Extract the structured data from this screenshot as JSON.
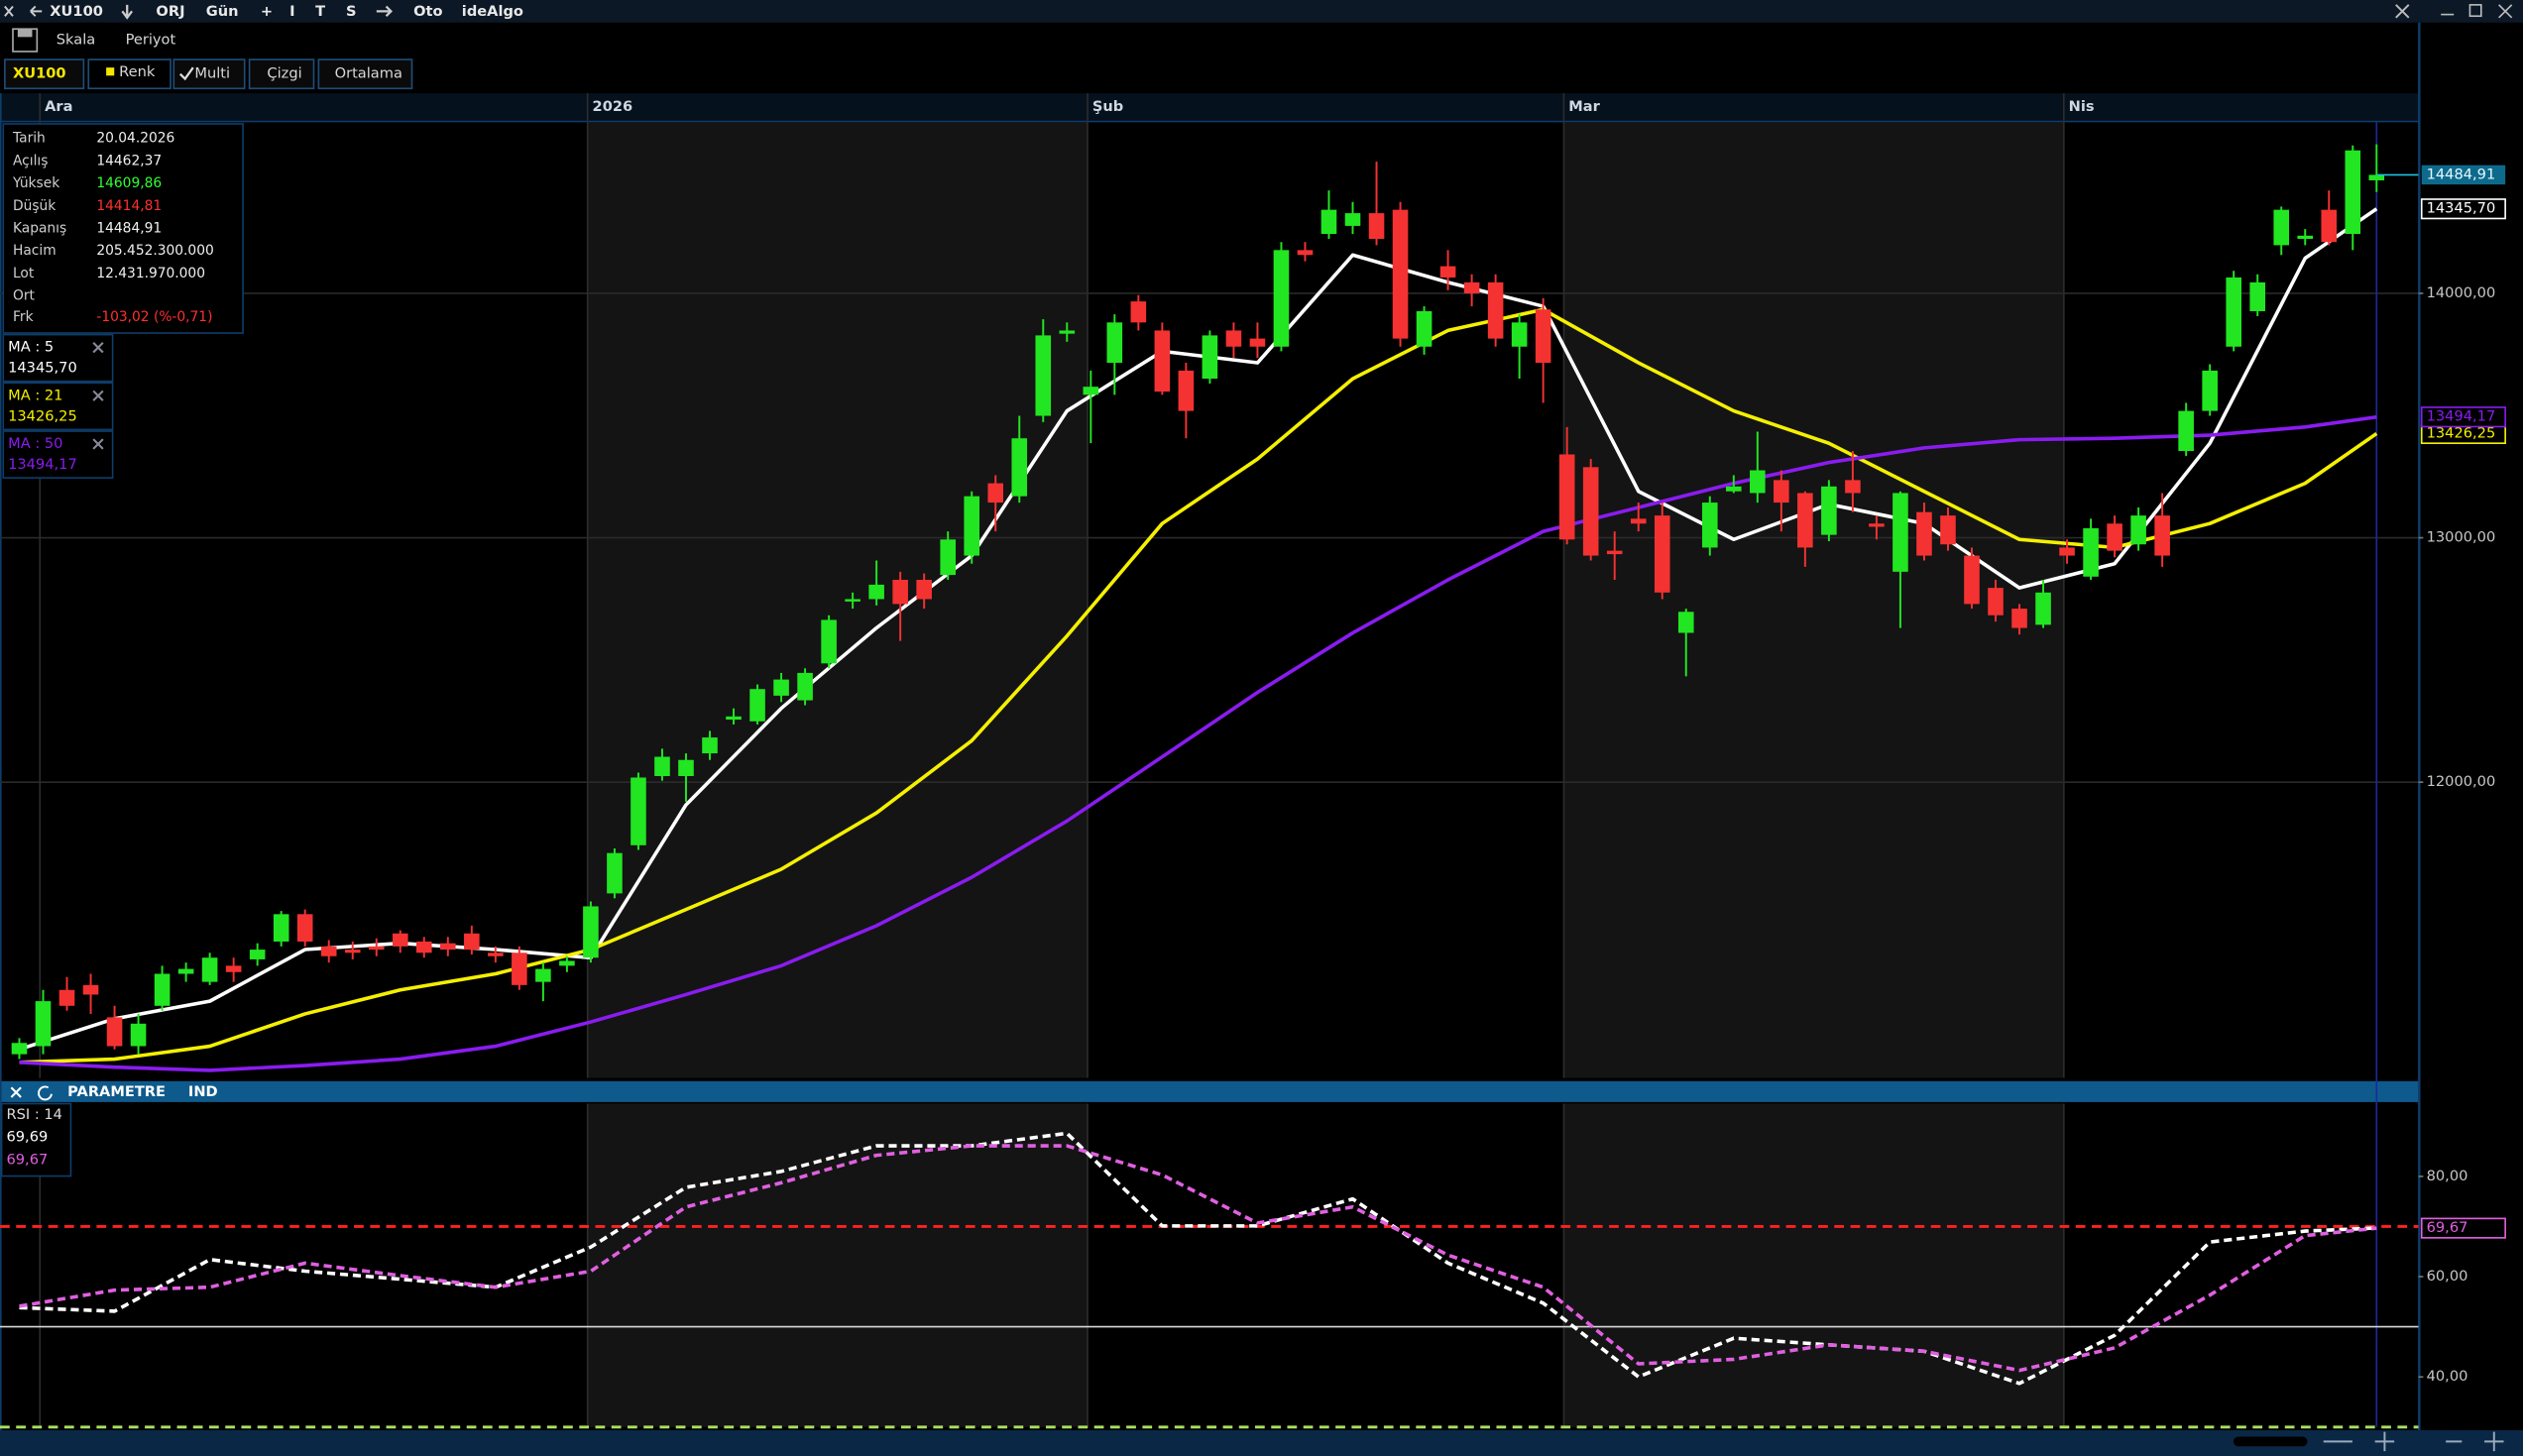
{
  "ui": {
    "toolbar": [
      "XU100",
      "ORJ",
      "Gün",
      "+",
      "I",
      "T",
      "S",
      "Oto",
      "ideAlgo"
    ],
    "menu": [
      "Skala",
      "Periyot"
    ],
    "tabs": [
      "XU100",
      "Renk",
      "Multi",
      "Çizgi",
      "Ortalama"
    ],
    "info": [
      {
        "label": "Tarih",
        "value": "20.04.2026"
      },
      {
        "label": "Açılış",
        "value": "14462,37"
      },
      {
        "label": "Yüksek",
        "value": "14609,86"
      },
      {
        "label": "Düşük",
        "value": "14414,81"
      },
      {
        "label": "Kapanış",
        "value": "14484,91"
      },
      {
        "label": "Hacim",
        "value": "205.452.300.000"
      },
      {
        "label": "Lot",
        "value": "12.431.970.000"
      },
      {
        "label": "Ort"
      },
      {
        "label": "Frk",
        "value": "-103,02 (%-0,71)"
      }
    ],
    "indicator_bar": [
      "PARAMETRE",
      "IND"
    ]
  },
  "chart_data": {
    "type": "candlestick",
    "categories": [
      null,
      "Ara",
      null,
      null,
      null,
      null,
      null,
      null,
      null,
      null,
      null,
      null,
      null,
      null,
      null,
      null,
      null,
      null,
      null,
      null,
      null,
      null,
      null,
      null,
      "2026",
      null,
      null,
      null,
      null,
      null,
      null,
      null,
      null,
      null,
      null,
      null,
      null,
      null,
      null,
      null,
      null,
      null,
      null,
      null,
      null,
      "Şub",
      null,
      null,
      null,
      null,
      null,
      null,
      null,
      null,
      null,
      null,
      null,
      null,
      null,
      null,
      null,
      null,
      null,
      null,
      null,
      "Mar",
      null,
      null,
      null,
      null,
      null,
      null,
      null,
      null,
      null,
      null,
      null,
      null,
      null,
      null,
      null,
      null,
      null,
      null,
      null,
      null,
      "Nis",
      null,
      null,
      null,
      null,
      null,
      null,
      null,
      null,
      null,
      null,
      null,
      null,
      null
    ],
    "open": [
      10887,
      10920,
      11150,
      11170,
      11038,
      10920,
      11085,
      11216,
      11183,
      11249,
      11275,
      11348,
      11460,
      11328,
      11315,
      11328,
      11381,
      11348,
      11341,
      11381,
      11302,
      11302,
      11183,
      11249,
      11282,
      11545,
      11742,
      12025,
      12025,
      12118,
      12256,
      12249,
      12354,
      12335,
      12486,
      12743,
      12749,
      12828,
      12828,
      12848,
      12927,
      13223,
      13170,
      13499,
      13835,
      13585,
      13716,
      13967,
      13848,
      13684,
      13651,
      13848,
      13815,
      13782,
      14177,
      14243,
      14276,
      14328,
      14342,
      13782,
      14111,
      14045,
      14045,
      13782,
      13934,
      13341,
      13289,
      12947,
      13078,
      13091,
      12611,
      12960,
      13190,
      13183,
      13236,
      13183,
      13012,
      13236,
      13058,
      12861,
      13105,
      13091,
      12927,
      12795,
      12710,
      12644,
      12960,
      12841,
      13058,
      12973,
      13091,
      13355,
      13519,
      13782,
      13927,
      14197,
      14223,
      14342,
      14243,
      14462.37
    ],
    "high": [
      10953,
      11150,
      11203,
      11216,
      11085,
      11052,
      11249,
      11262,
      11302,
      11282,
      11341,
      11473,
      11479,
      11354,
      11348,
      11361,
      11394,
      11367,
      11367,
      11413,
      11328,
      11328,
      11262,
      11288,
      11512,
      11729,
      12039,
      12137,
      12118,
      12210,
      12302,
      12400,
      12447,
      12466,
      12683,
      12776,
      12907,
      12861,
      12854,
      13026,
      13190,
      13256,
      13499,
      13894,
      13881,
      13684,
      13914,
      13993,
      13881,
      13716,
      13848,
      13881,
      13881,
      14210,
      14210,
      14421,
      14374,
      14539,
      14374,
      13947,
      14177,
      14078,
      14078,
      13914,
      13980,
      13453,
      13322,
      13026,
      13144,
      13144,
      12710,
      13170,
      13256,
      13434,
      13276,
      13190,
      13236,
      13355,
      13091,
      13190,
      13144,
      13124,
      12960,
      12828,
      12729,
      12828,
      12993,
      13078,
      13091,
      13124,
      13183,
      13552,
      13710,
      14092,
      14078,
      14355,
      14263,
      14421,
      14605,
      14609.86
    ],
    "low": [
      10867,
      10887,
      11065,
      11052,
      10907,
      10887,
      11065,
      11183,
      11170,
      11183,
      11249,
      11328,
      11328,
      11262,
      11275,
      11288,
      11302,
      11282,
      11288,
      11295,
      11262,
      11150,
      11104,
      11223,
      11262,
      11525,
      11723,
      12006,
      11920,
      12091,
      12236,
      12236,
      12328,
      12315,
      12466,
      12710,
      12723,
      12578,
      12710,
      12828,
      12894,
      13026,
      13144,
      13473,
      13802,
      13387,
      13585,
      13848,
      13585,
      13407,
      13631,
      13736,
      13736,
      13763,
      14131,
      14223,
      14243,
      14197,
      13782,
      13749,
      14013,
      13947,
      13782,
      13651,
      13552,
      12973,
      12907,
      12828,
      13026,
      12749,
      12433,
      12927,
      13183,
      13144,
      13026,
      12881,
      12986,
      13105,
      12993,
      12631,
      12907,
      12947,
      12710,
      12657,
      12604,
      12631,
      12894,
      12828,
      12920,
      12947,
      12881,
      13335,
      13499,
      13763,
      13907,
      14157,
      14197,
      14197,
      14177,
      14414.81
    ],
    "close": [
      10933,
      11104,
      11085,
      11131,
      10920,
      11012,
      11216,
      11236,
      11282,
      11223,
      11315,
      11460,
      11348,
      11288,
      11302,
      11315,
      11328,
      11302,
      11315,
      11315,
      11288,
      11170,
      11236,
      11269,
      11492,
      11710,
      12019,
      12104,
      12091,
      12183,
      12269,
      12381,
      12420,
      12447,
      12664,
      12749,
      12808,
      12729,
      12749,
      12993,
      13170,
      13144,
      13407,
      13828,
      13848,
      13618,
      13881,
      13881,
      13598,
      13519,
      13828,
      13782,
      13782,
      14177,
      14157,
      14342,
      14328,
      14223,
      13815,
      13927,
      14065,
      14000,
      13815,
      13881,
      13716,
      12993,
      12927,
      12933,
      13058,
      12776,
      12697,
      13144,
      13210,
      13276,
      13144,
      12960,
      13210,
      13183,
      13045,
      13183,
      12927,
      12973,
      12729,
      12683,
      12631,
      12776,
      12927,
      13039,
      12947,
      13091,
      12927,
      13519,
      13684,
      14065,
      14045,
      14342,
      14236,
      14210,
      14585,
      14484.91
    ],
    "up_color": "#22e622",
    "down_color": "#f43232",
    "last_label": "14484,91",
    "ylim": [
      10790,
      14700
    ],
    "yticks": [
      {
        "value": 12000,
        "label": "12000,00"
      },
      {
        "value": 13000,
        "label": "13000,00"
      },
      {
        "value": 14000,
        "label": "14000,00"
      }
    ],
    "grid": true,
    "ma": [
      {
        "name": "MA : 5",
        "color": "#ffffff",
        "last_label": "14345,70",
        "x": [
          0,
          4,
          8,
          12,
          16,
          20,
          24,
          28,
          32,
          36,
          40,
          44,
          48,
          52,
          56,
          60,
          64,
          68,
          72,
          76,
          80,
          84,
          88,
          92,
          96,
          99
        ],
        "values": [
          10907,
          11032,
          11104,
          11315,
          11341,
          11315,
          11282,
          11907,
          12302,
          12631,
          12927,
          13519,
          13763,
          13716,
          14157,
          14045,
          13947,
          13190,
          12993,
          13137,
          13058,
          12795,
          12894,
          13387,
          14144,
          14345.7
        ]
      },
      {
        "name": "MA : 21",
        "color": "#f5f000",
        "last_label": "13426,25",
        "x": [
          0,
          4,
          8,
          12,
          16,
          20,
          24,
          28,
          32,
          36,
          40,
          44,
          48,
          52,
          56,
          60,
          64,
          68,
          72,
          76,
          80,
          84,
          88,
          92,
          96,
          99
        ],
        "values": [
          10854,
          10867,
          10920,
          11052,
          11150,
          11216,
          11315,
          11479,
          11644,
          11874,
          12170,
          12598,
          13058,
          13322,
          13651,
          13848,
          13934,
          13716,
          13519,
          13387,
          13190,
          12993,
          12960,
          13058,
          13223,
          13426.25
        ]
      },
      {
        "name": "MA : 50",
        "color": "#8a1cf0",
        "last_label": "13494,17",
        "x": [
          0,
          4,
          8,
          12,
          16,
          20,
          24,
          28,
          32,
          36,
          40,
          44,
          48,
          52,
          56,
          60,
          64,
          68,
          72,
          76,
          80,
          84,
          88,
          92,
          96,
          99
        ],
        "values": [
          10854,
          10834,
          10821,
          10841,
          10867,
          10920,
          11019,
          11131,
          11249,
          11413,
          11611,
          11841,
          12104,
          12367,
          12611,
          12828,
          13026,
          13124,
          13223,
          13308,
          13368,
          13401,
          13407,
          13420,
          13453,
          13494.17
        ]
      }
    ],
    "rsi": {
      "type": "line",
      "title": "RSI : 14",
      "ylim": [
        30,
        94.5
      ],
      "yticks": [
        {
          "value": 40,
          "label": "40,00"
        },
        {
          "value": 60,
          "label": "60,00"
        },
        {
          "value": 80,
          "label": "80,00"
        }
      ],
      "levels": [
        {
          "value": 70,
          "color": "#ff2020",
          "style": "dashed"
        },
        {
          "value": 50,
          "color": "#d8d8d8",
          "style": "solid"
        },
        {
          "value": 30,
          "color": "#a8e060",
          "style": "dashed"
        }
      ],
      "series": [
        {
          "color": "#ffffff",
          "style": "dashed",
          "last_label": "69,69",
          "x": [
            0,
            4,
            8,
            12,
            16,
            20,
            24,
            28,
            32,
            36,
            40,
            44,
            48,
            52,
            56,
            60,
            64,
            68,
            72,
            76,
            80,
            84,
            88,
            92,
            96,
            99
          ],
          "values": [
            53.8,
            53.1,
            63.4,
            61.1,
            59.5,
            57.9,
            65.9,
            77.8,
            81,
            86.1,
            86.1,
            88.6,
            70.1,
            70.1,
            75.5,
            62.7,
            54.7,
            40,
            47.7,
            46.4,
            45.1,
            38.7,
            48.3,
            66.9,
            69.1,
            69.69
          ]
        },
        {
          "color": "#e060e0",
          "style": "dashed",
          "last_label": "69,67",
          "x": [
            0,
            4,
            8,
            12,
            16,
            20,
            24,
            28,
            32,
            36,
            40,
            44,
            48,
            52,
            56,
            60,
            64,
            68,
            72,
            76,
            80,
            84,
            88,
            92,
            96,
            99
          ],
          "values": [
            54.1,
            57.3,
            57.9,
            62.7,
            60.2,
            57.9,
            61.1,
            73.9,
            78.7,
            84.2,
            86.1,
            86.1,
            80.3,
            70.7,
            73.9,
            64.3,
            57.9,
            42.6,
            43.5,
            46.4,
            45.1,
            41.3,
            45.8,
            56.3,
            68.2,
            69.67
          ]
        }
      ]
    }
  }
}
